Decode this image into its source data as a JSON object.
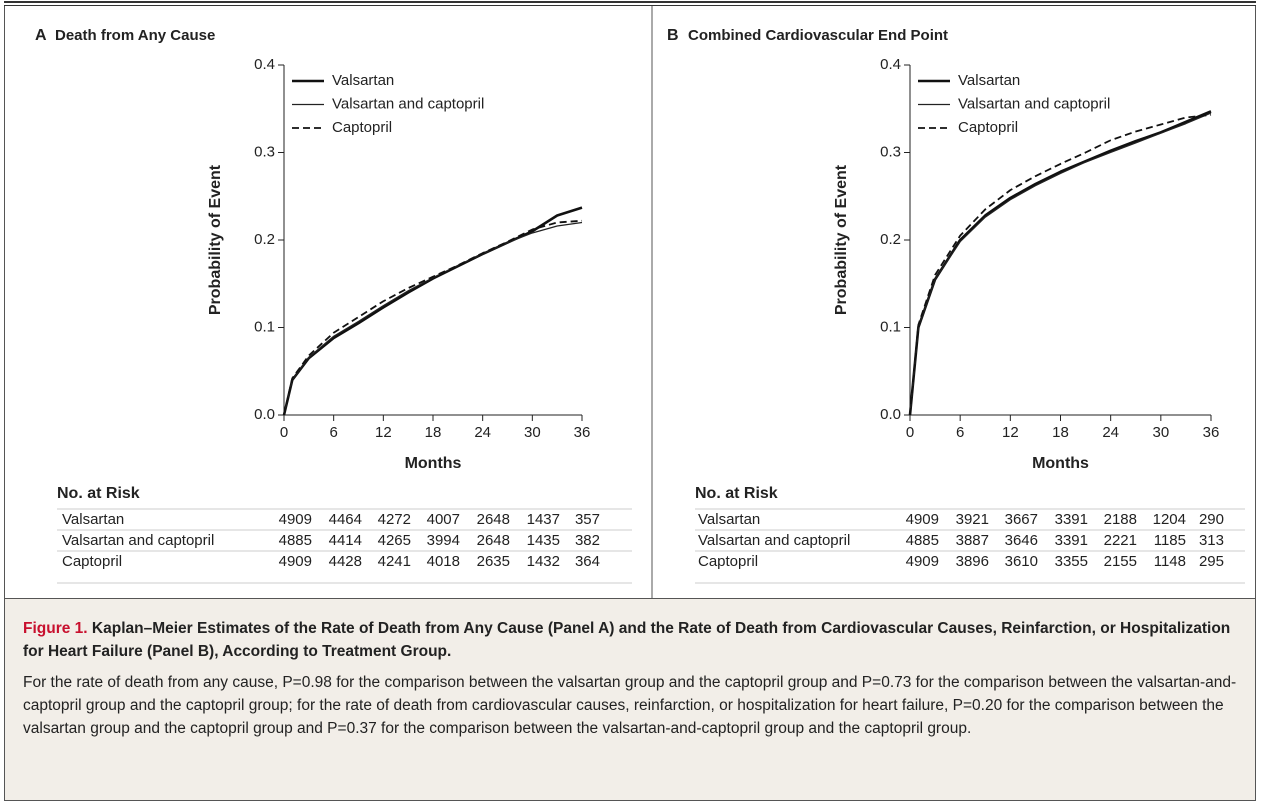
{
  "chart_data": [
    {
      "type": "line",
      "panel": "A",
      "title": "Death from Any Cause",
      "x_label": "Months",
      "y_label": "Probability of Event",
      "x": [
        0,
        1,
        3,
        6,
        9,
        12,
        15,
        18,
        21,
        24,
        27,
        30,
        33,
        36
      ],
      "series": [
        {
          "name": "Valsartan",
          "color": "#111111",
          "width": 2.6,
          "dashed": false,
          "values": [
            0,
            0.04,
            0.065,
            0.088,
            0.105,
            0.123,
            0.14,
            0.156,
            0.17,
            0.184,
            0.197,
            0.21,
            0.228,
            0.237
          ]
        },
        {
          "name": "Valsartan and captopril",
          "color": "#222222",
          "width": 1.2,
          "dashed": false,
          "values": [
            0,
            0.04,
            0.066,
            0.09,
            0.107,
            0.125,
            0.142,
            0.157,
            0.171,
            0.184,
            0.197,
            0.208,
            0.216,
            0.22
          ]
        },
        {
          "name": "Captopril",
          "color": "#111111",
          "width": 1.8,
          "dashed": true,
          "values": [
            0,
            0.042,
            0.068,
            0.094,
            0.112,
            0.13,
            0.145,
            0.158,
            0.171,
            0.185,
            0.198,
            0.212,
            0.22,
            0.222
          ]
        }
      ],
      "xlim": [
        0,
        36
      ],
      "xticks": [
        0,
        6,
        12,
        18,
        24,
        30,
        36
      ],
      "ylim": [
        0,
        0.4
      ],
      "yticks": [
        {
          "value": 0,
          "label": "0.0"
        },
        0.1,
        0.2,
        0.3,
        0.4
      ],
      "legend": "top-left",
      "risk_table": {
        "title": "No. at Risk",
        "rows": [
          {
            "label": "Valsartan",
            "values": [
              "4909",
              "4464",
              "4272",
              "4007",
              "2648",
              "1437",
              "357"
            ]
          },
          {
            "label": "Valsartan and captopril",
            "values": [
              "4885",
              "4414",
              "4265",
              "3994",
              "2648",
              "1435",
              "382"
            ]
          },
          {
            "label": "Captopril",
            "values": [
              "4909",
              "4428",
              "4241",
              "4018",
              "2635",
              "1432",
              "364"
            ]
          }
        ]
      }
    },
    {
      "type": "line",
      "panel": "B",
      "title": "Combined Cardiovascular End Point",
      "x_label": "Months",
      "y_label": "Probability of Event",
      "x": [
        0,
        1,
        3,
        6,
        9,
        12,
        15,
        18,
        21,
        24,
        27,
        30,
        33,
        36
      ],
      "series": [
        {
          "name": "Valsartan",
          "color": "#111111",
          "width": 2.6,
          "dashed": false,
          "values": [
            0,
            0.1,
            0.155,
            0.2,
            0.228,
            0.248,
            0.264,
            0.278,
            0.29,
            0.302,
            0.313,
            0.323,
            0.335,
            0.347
          ]
        },
        {
          "name": "Valsartan and captopril",
          "color": "#222222",
          "width": 1.2,
          "dashed": false,
          "values": [
            0,
            0.1,
            0.155,
            0.198,
            0.226,
            0.246,
            0.262,
            0.276,
            0.289,
            0.3,
            0.311,
            0.322,
            0.333,
            0.345
          ]
        },
        {
          "name": "Captopril",
          "color": "#111111",
          "width": 1.8,
          "dashed": true,
          "values": [
            0,
            0.103,
            0.16,
            0.205,
            0.235,
            0.257,
            0.273,
            0.287,
            0.3,
            0.314,
            0.324,
            0.332,
            0.34,
            0.343
          ]
        }
      ],
      "xlim": [
        0,
        36
      ],
      "xticks": [
        0,
        6,
        12,
        18,
        24,
        30,
        36
      ],
      "ylim": [
        0,
        0.4
      ],
      "yticks": [
        {
          "value": 0,
          "label": "0.0"
        },
        0.1,
        0.2,
        0.3,
        0.4
      ],
      "legend": "top-left",
      "risk_table": {
        "title": "No. at Risk",
        "rows": [
          {
            "label": "Valsartan",
            "values": [
              "4909",
              "3921",
              "3667",
              "3391",
              "2188",
              "1204",
              "290"
            ]
          },
          {
            "label": "Valsartan and captopril",
            "values": [
              "4885",
              "3887",
              "3646",
              "3391",
              "2221",
              "1185",
              "313"
            ]
          },
          {
            "label": "Captopril",
            "values": [
              "4909",
              "3896",
              "3610",
              "3355",
              "2155",
              "1148",
              "295"
            ]
          }
        ]
      }
    }
  ],
  "caption": {
    "label": "Figure 1.",
    "title": "Kaplan–Meier Estimates of the Rate of Death from Any Cause (Panel A) and the Rate of Death from Cardiovascular Causes, Reinfarction, or Hospitalization for Heart Failure (Panel B), According to Treatment Group.",
    "text": "For the rate of death from any cause, P=0.98 for the comparison between the valsartan group and the captopril group and P=0.73 for the comparison between the valsartan-and-captopril group and the captopril group; for the rate of death from cardiovascular causes, reinfarction, or hospitalization for heart failure, P=0.20 for the comparison between the valsartan group and the captopril group and P=0.37 for the comparison between the valsartan-and-captopril group and the captopril group."
  }
}
